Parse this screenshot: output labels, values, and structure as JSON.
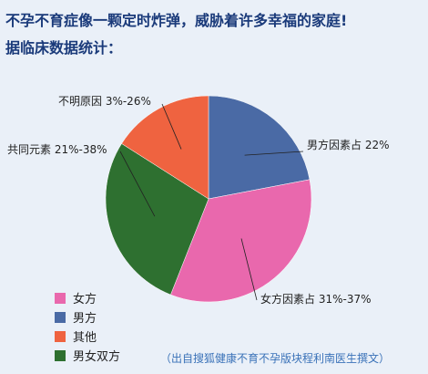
{
  "header": {
    "line1": "不孕不育症像一颗定时炸弹，威胁着许多幸福的家庭!",
    "line2": "据临床数据统计："
  },
  "chart_data": {
    "type": "pie",
    "slices": [
      {
        "label": "男方因素占 22%",
        "legend": "男方",
        "value": 22,
        "color": "#4a6aa5"
      },
      {
        "label": "女方因素占 31%-37%",
        "legend": "女方",
        "value": 34,
        "color": "#e968ad"
      },
      {
        "label": "共同元素 21%-38%",
        "legend": "男女双方",
        "value": 28,
        "color": "#2e7030"
      },
      {
        "label": "不明原因 3%-26%",
        "legend": "其他",
        "value": 16,
        "color": "#ef6340"
      }
    ],
    "legend": [
      "女方",
      "男方",
      "其他",
      "男女双方"
    ],
    "legend_colors": [
      "#e968ad",
      "#4a6aa5",
      "#ef6340",
      "#2e7030"
    ],
    "legend_placement": "bottom-left"
  },
  "footer": {
    "source": "（出自搜狐健康不育不孕版块程利南医生撰文）"
  }
}
